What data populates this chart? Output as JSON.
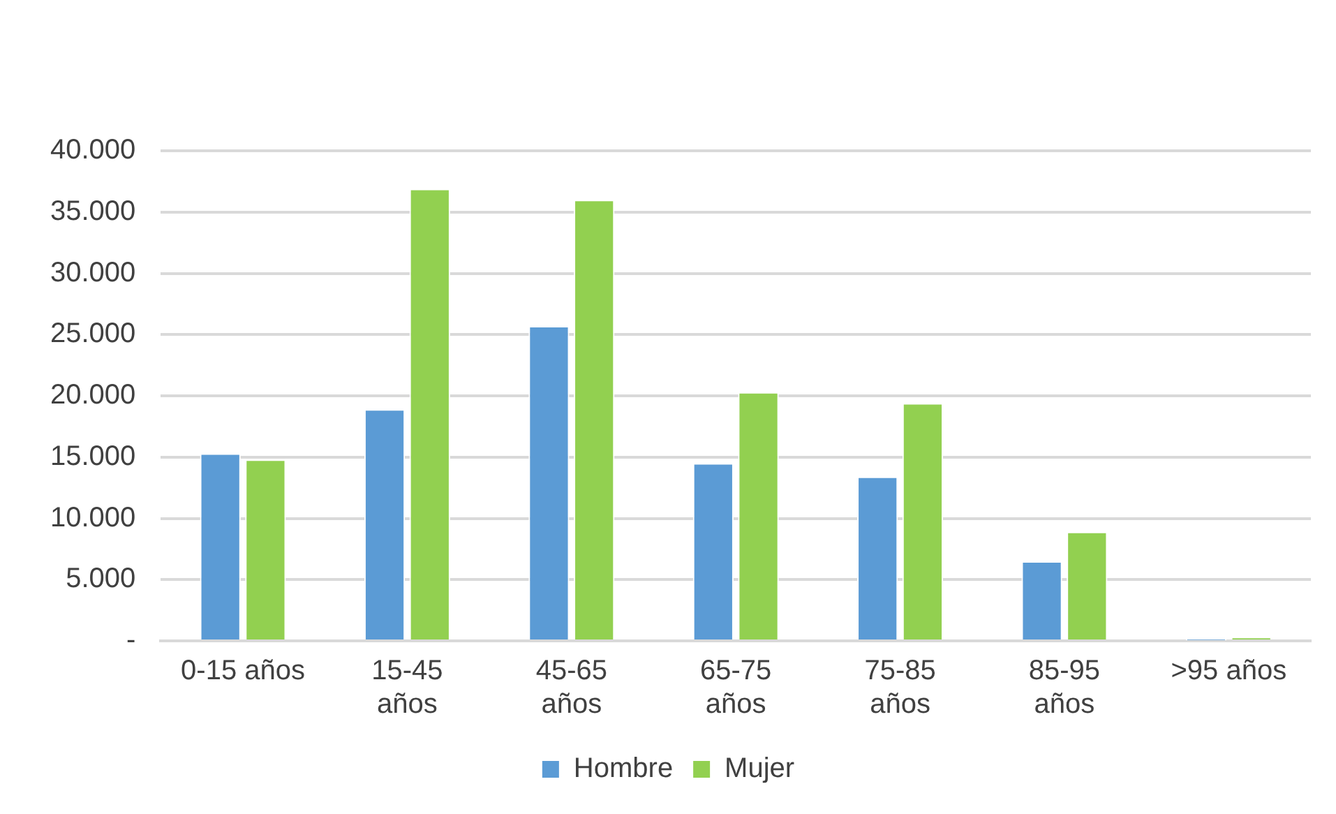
{
  "chart_data": {
    "type": "bar",
    "categories": [
      "0-15 años",
      "15-45 años",
      "45-65 años",
      "65-75 años",
      "75-85 años",
      "85-95 años",
      ">95 años"
    ],
    "series": [
      {
        "name": "Hombre",
        "color": "#5b9bd5",
        "values": [
          15300,
          18900,
          25700,
          14500,
          13400,
          6500,
          40
        ]
      },
      {
        "name": "Mujer",
        "color": "#92d050",
        "values": [
          14800,
          36900,
          36000,
          20300,
          19400,
          8900,
          320
        ]
      }
    ],
    "ylim": [
      0,
      40000
    ],
    "yticks": [
      {
        "value": 0,
        "label": "-"
      },
      {
        "value": 5000,
        "label": "5.000"
      },
      {
        "value": 10000,
        "label": "10.000"
      },
      {
        "value": 15000,
        "label": "15.000"
      },
      {
        "value": 20000,
        "label": "20.000"
      },
      {
        "value": 25000,
        "label": "25.000"
      },
      {
        "value": 30000,
        "label": "30.000"
      },
      {
        "value": 35000,
        "label": "35.000"
      },
      {
        "value": 40000,
        "label": "40.000"
      }
    ],
    "grid": "y",
    "legend": "bottom"
  }
}
